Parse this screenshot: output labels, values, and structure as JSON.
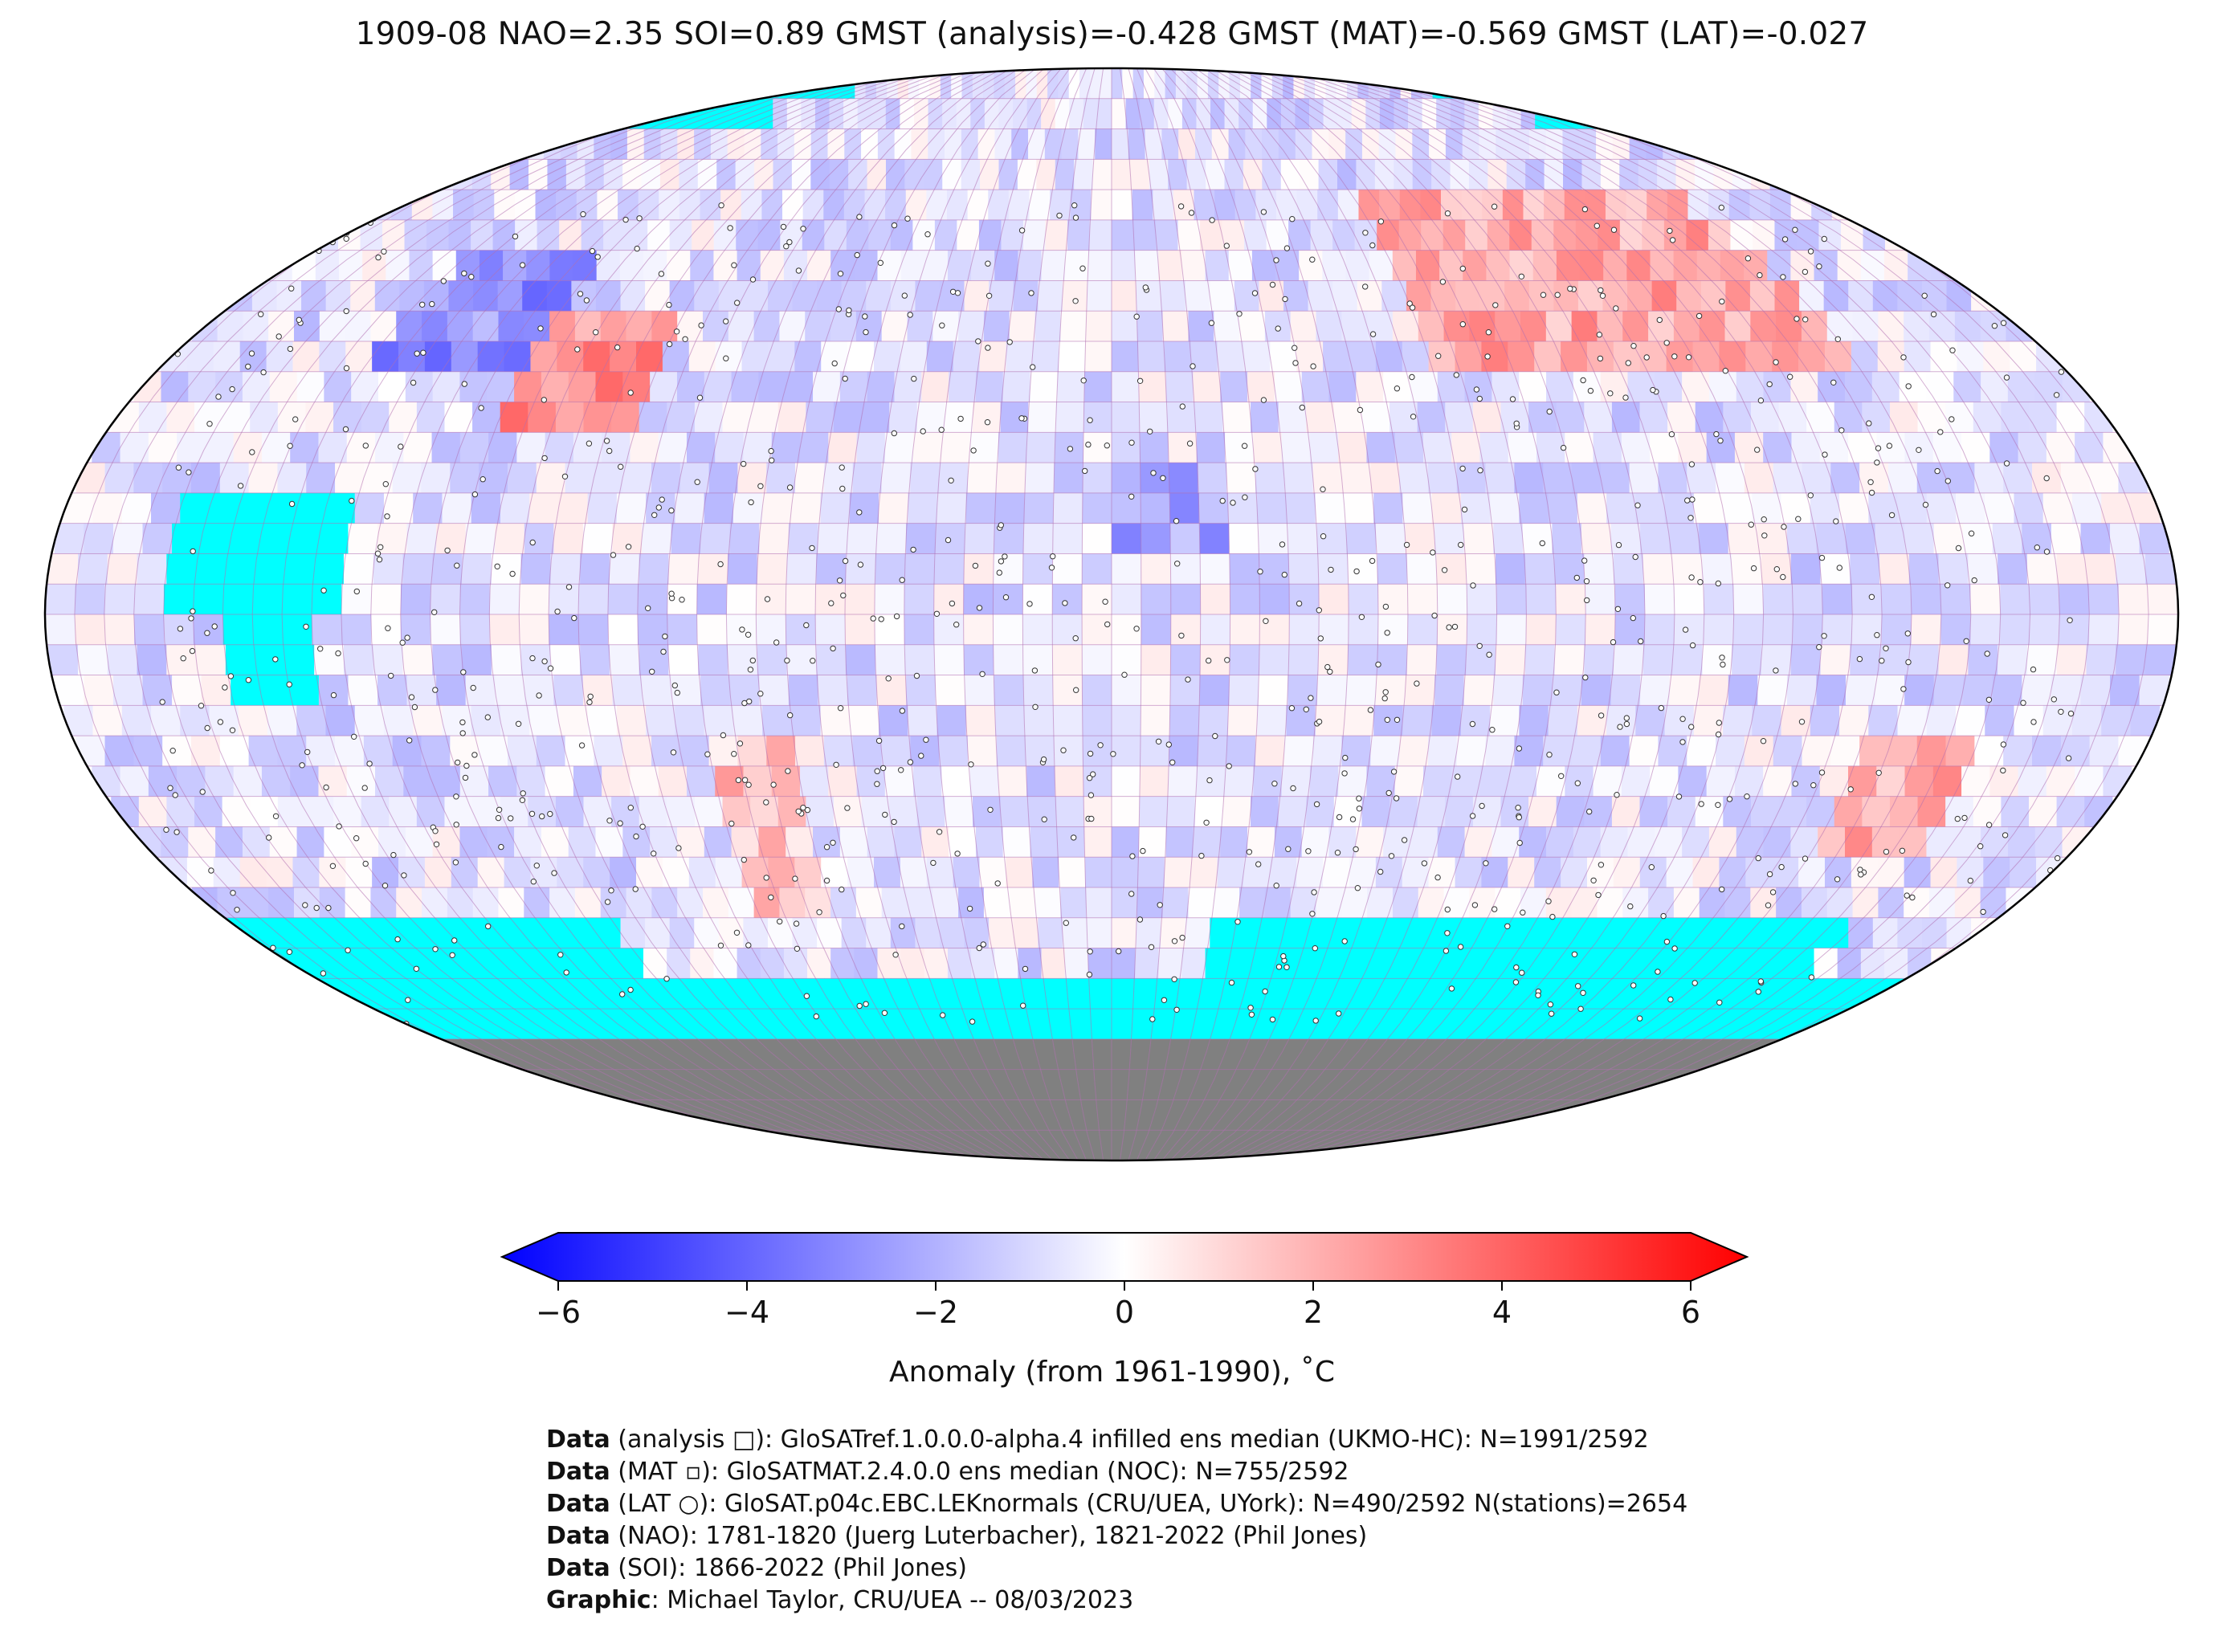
{
  "title": "1909-08 NAO=2.35 SOI=0.89 GMST (analysis)=-0.428 GMST (MAT)=-0.569 GMST (LAT)=-0.027",
  "colorbar": {
    "label": "Anomaly (from 1961-1990), ˚C",
    "ticks": [
      "−6",
      "−4",
      "−2",
      "0",
      "2",
      "4",
      "6"
    ],
    "tick_values": [
      -6,
      -4,
      -2,
      0,
      2,
      4,
      6
    ],
    "min": -6,
    "max": 6,
    "colors": {
      "low": "#0000ff",
      "mid": "#ffffff",
      "high": "#ff0000"
    },
    "extend": "both"
  },
  "map": {
    "projection": "Robinson",
    "missing_ocean_color": "#00ffff",
    "land_mask_color": "#808080",
    "gridline_color": "#b070b0"
  },
  "credits": [
    {
      "label": "Data",
      "text": " (analysis □): GloSATref.1.0.0.0-alpha.4 infilled ens median (UKMO-HC): N=1991/2592"
    },
    {
      "label": "Data",
      "text": " (MAT ▫): GloSATMAT.2.4.0.0 ens median (NOC): N=755/2592"
    },
    {
      "label": "Data",
      "text": " (LAT ○): GloSAT.p04c.EBC.LEKnormals (CRU/UEA, UYork): N=490/2592 N(stations)=2654"
    },
    {
      "label": "Data",
      "text": " (NAO): 1781-1820 (Juerg Luterbacher), 1821-2022 (Phil Jones)"
    },
    {
      "label": "Data",
      "text": " (SOI): 1866-2022 (Phil Jones)"
    },
    {
      "label": "Graphic",
      "text": ": Michael Taylor, CRU/UEA -- 08/03/2023"
    }
  ]
}
